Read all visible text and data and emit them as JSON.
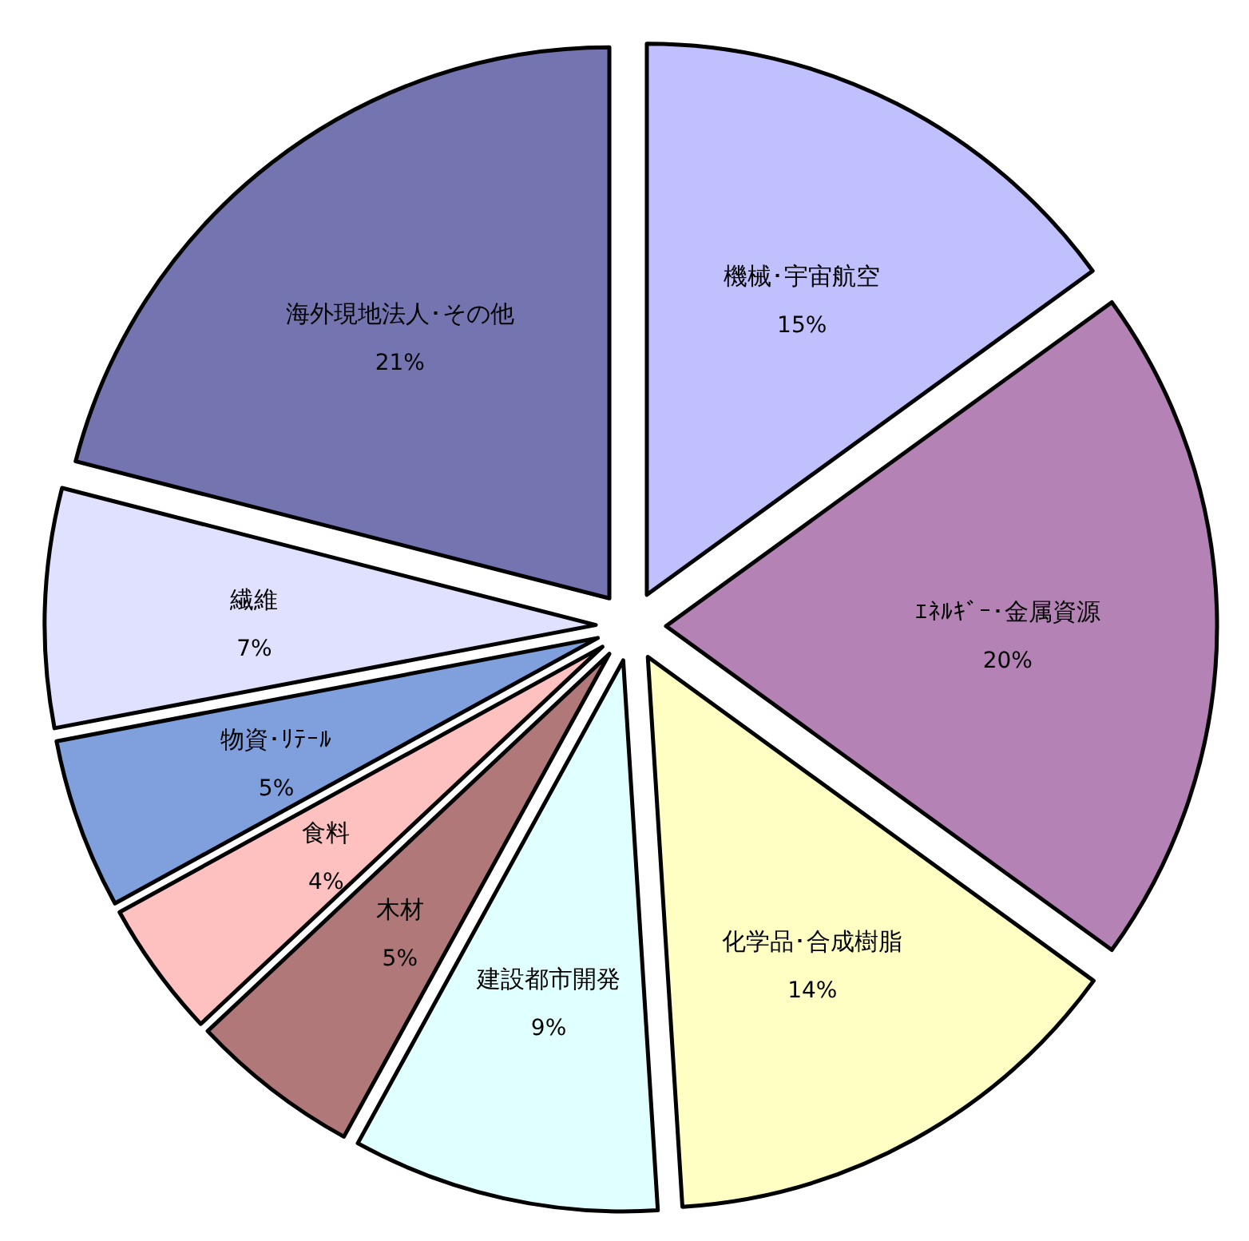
{
  "chart_data": {
    "type": "pie",
    "categories": [
      "機械･宇宙航空",
      "ｴﾈﾙｷﾞｰ･金属資源",
      "化学品･合成樹脂",
      "建設都市開発",
      "木材",
      "食料",
      "物資･ﾘﾃｰﾙ",
      "繊維",
      "海外現地法人･その他"
    ],
    "values": [
      15,
      20,
      14,
      9,
      5,
      4,
      5,
      7,
      21
    ],
    "value_labels": [
      "15%",
      "20%",
      "14%",
      "9%",
      "5%",
      "4%",
      "5%",
      "7%",
      "21%"
    ],
    "colors": [
      "#c0c0ff",
      "#b482b4",
      "#ffffc4",
      "#e0ffff",
      "#b07878",
      "#ffc0c0",
      "#7f9fdd",
      "#e0e0ff",
      "#7474b0"
    ]
  }
}
